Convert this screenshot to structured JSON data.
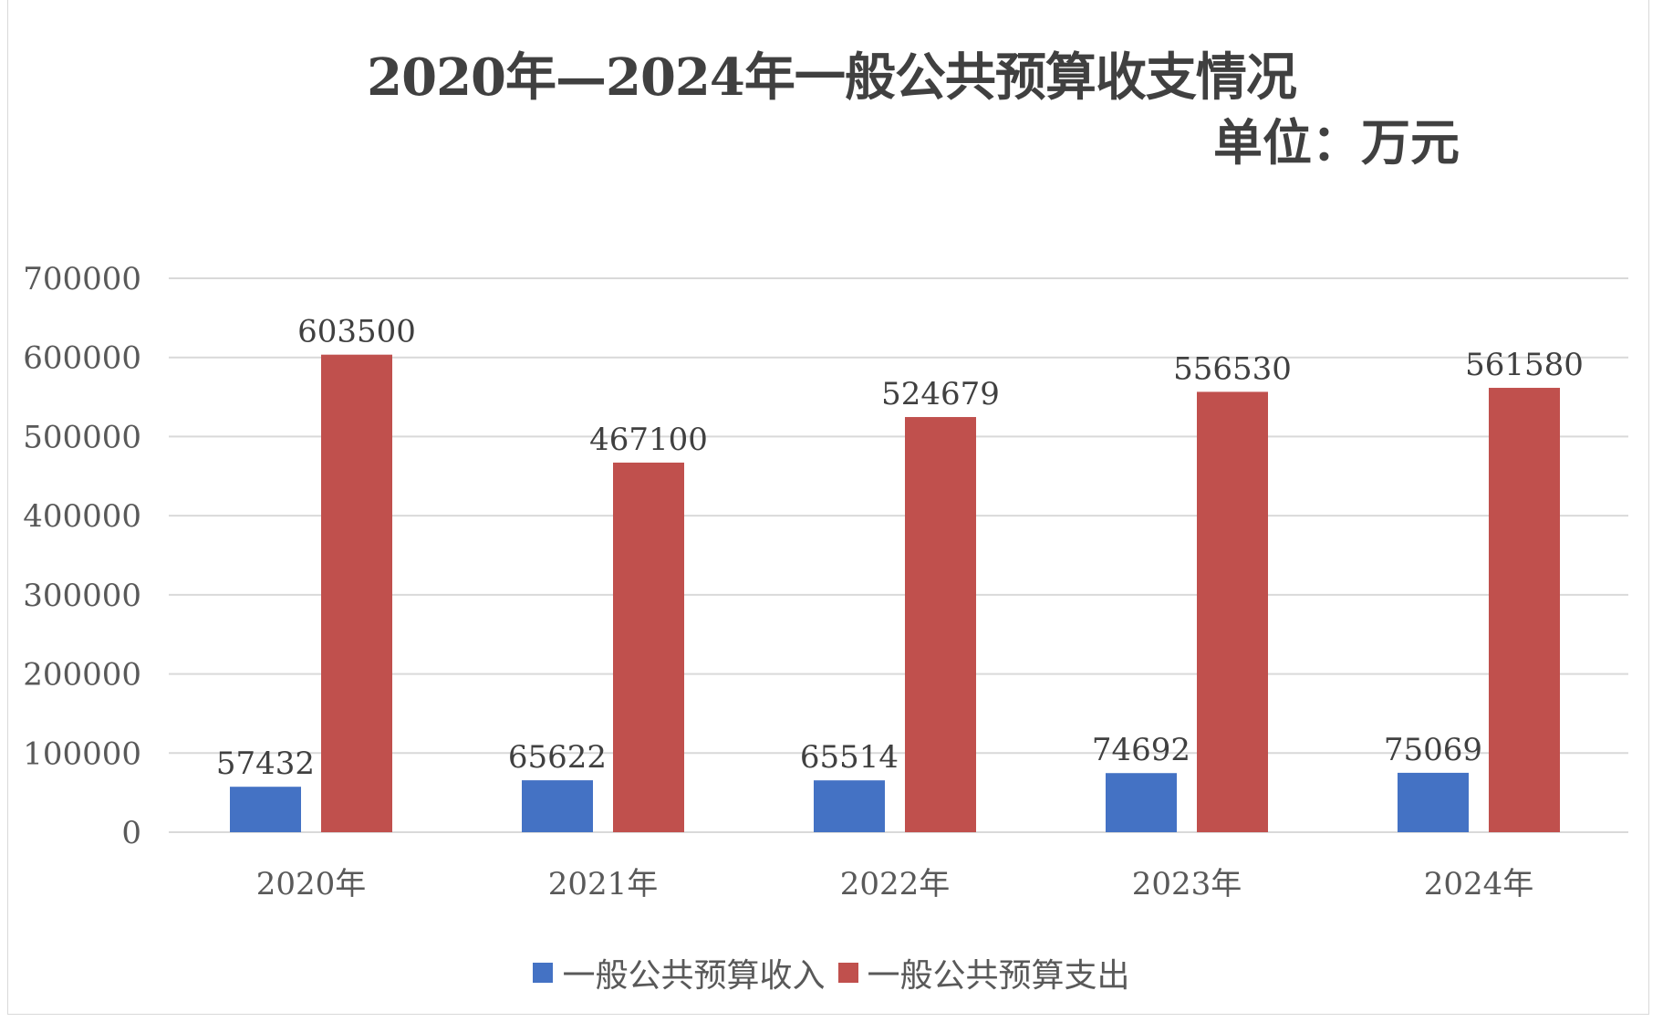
{
  "chart_data": {
    "type": "bar",
    "title": "2020年—2024年一般公共预算收支情况",
    "subtitle": "单位：万元",
    "categories": [
      "2020年",
      "2021年",
      "2022年",
      "2023年",
      "2024年"
    ],
    "series": [
      {
        "name": "一般公共预算收入",
        "color": "#4472c4",
        "values": [
          57432,
          65622,
          65514,
          74692,
          75069
        ]
      },
      {
        "name": "一般公共预算支出",
        "color": "#c0504d",
        "values": [
          603500,
          467100,
          524679,
          556530,
          561580
        ]
      }
    ],
    "yticks": [
      0,
      100000,
      200000,
      300000,
      400000,
      500000,
      600000,
      700000
    ],
    "ylim": [
      0,
      700000
    ],
    "grid": true,
    "legend": "bottom"
  }
}
